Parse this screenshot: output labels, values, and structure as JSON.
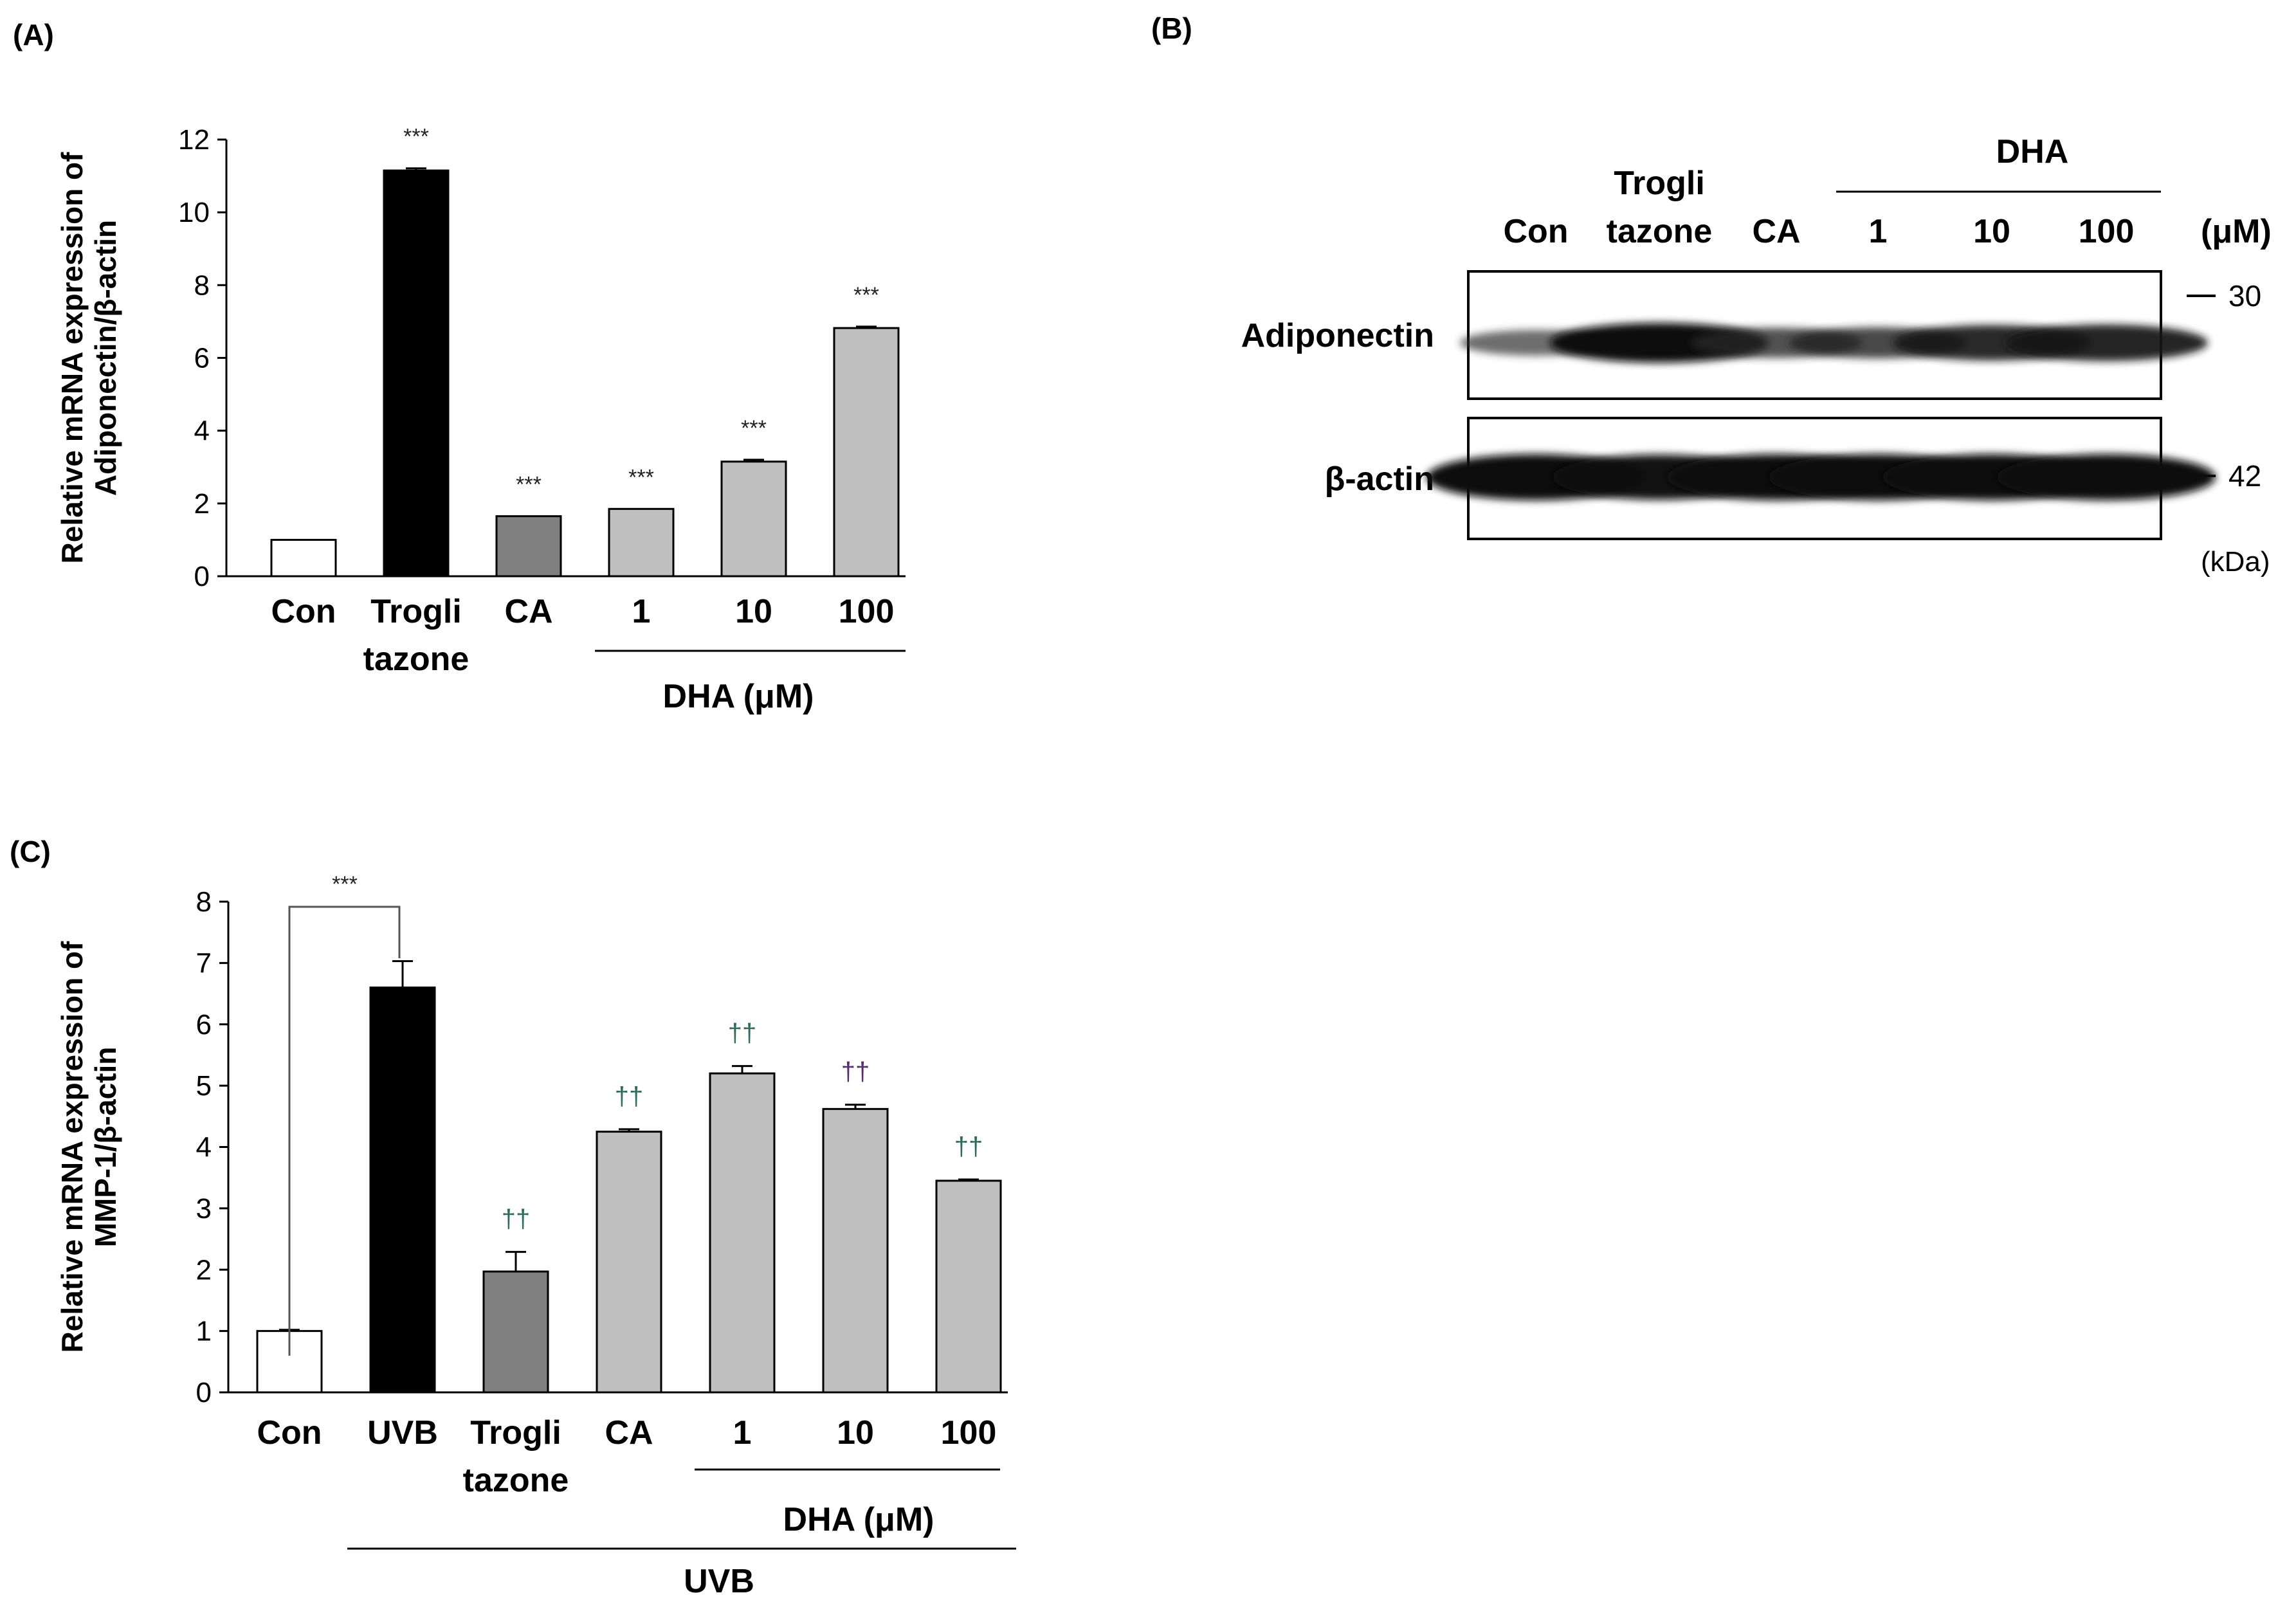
{
  "panels": {
    "a": {
      "label": "(A)"
    },
    "b": {
      "label": "(B)"
    },
    "c": {
      "label": "(C)"
    }
  },
  "colors": {
    "white_bar": "#ffffff",
    "black_bar": "#000000",
    "dark_gray_bar": "#808080",
    "light_gray_bar": "#c0c0c0",
    "dagger_green": "#2e6b5a",
    "dagger_purple": "#5a2a6e"
  },
  "chart_data": [
    {
      "panel": "A",
      "type": "bar",
      "ylabel_lines": [
        "Relative mRNA expression of",
        "Adiponectin/β-actin"
      ],
      "ylim": [
        0,
        12
      ],
      "yticks": [
        "0",
        "2",
        "4",
        "6",
        "8",
        "10",
        "12"
      ],
      "categories": [
        {
          "lines": [
            "Con"
          ]
        },
        {
          "lines": [
            "Trogli",
            "tazone"
          ]
        },
        {
          "lines": [
            "CA"
          ]
        },
        {
          "lines": [
            "1"
          ]
        },
        {
          "lines": [
            "10"
          ]
        },
        {
          "lines": [
            "100"
          ]
        }
      ],
      "values": [
        1.0,
        11.15,
        1.65,
        1.85,
        3.15,
        6.82
      ],
      "errors": [
        0.0,
        0.06,
        0.0,
        0.0,
        0.05,
        0.04
      ],
      "bar_colors": [
        "white",
        "black",
        "dark_gray",
        "light_gray",
        "light_gray",
        "light_gray"
      ],
      "annotations": [
        "",
        "***",
        "***",
        "***",
        "***",
        "***"
      ],
      "group_label": "DHA (μM)",
      "grid": false
    },
    {
      "panel": "C",
      "type": "bar",
      "ylabel_lines": [
        "Relative mRNA expression of",
        "MMP-1/β-actin"
      ],
      "ylim": [
        0,
        8
      ],
      "yticks": [
        "0",
        "1",
        "2",
        "3",
        "4",
        "5",
        "6",
        "7",
        "8"
      ],
      "categories": [
        {
          "lines": [
            "Con"
          ]
        },
        {
          "lines": [
            "UVB"
          ]
        },
        {
          "lines": [
            "Trogli",
            "tazone"
          ]
        },
        {
          "lines": [
            "CA"
          ]
        },
        {
          "lines": [
            "1"
          ]
        },
        {
          "lines": [
            "10"
          ]
        },
        {
          "lines": [
            "100"
          ]
        }
      ],
      "values": [
        1.0,
        6.6,
        1.97,
        4.25,
        5.2,
        4.62,
        3.45
      ],
      "errors": [
        0.02,
        0.43,
        0.32,
        0.04,
        0.12,
        0.07,
        0.02
      ],
      "bar_colors": [
        "white",
        "black",
        "dark_gray",
        "light_gray",
        "light_gray",
        "light_gray",
        "light_gray"
      ],
      "annotations": [
        "",
        "",
        "††",
        "††",
        "††",
        "††",
        "††"
      ],
      "annotation_colors": [
        "",
        "",
        "green",
        "green",
        "green",
        "purple",
        "green"
      ],
      "bracket_label": "***",
      "group_label": "DHA (μM)",
      "outer_group_label": "UVB",
      "grid": false
    }
  ],
  "western_blot": {
    "lanes": [
      {
        "lines": [
          "Con"
        ]
      },
      {
        "lines": [
          "Trogli",
          "tazone"
        ]
      },
      {
        "lines": [
          "CA"
        ]
      },
      {
        "lines": [
          "1"
        ]
      },
      {
        "lines": [
          "10"
        ]
      },
      {
        "lines": [
          "100"
        ]
      }
    ],
    "group_label": "DHA",
    "unit_label": "(μM)",
    "rows": [
      {
        "label": "Adiponectin",
        "marker": "30",
        "intensities": [
          0.35,
          1.0,
          0.55,
          0.6,
          0.8,
          0.85
        ]
      },
      {
        "label": "β-actin",
        "marker": "42",
        "intensities": [
          1.0,
          0.95,
          1.0,
          1.0,
          1.0,
          1.0
        ]
      }
    ],
    "kda_label": "(kDa)"
  }
}
